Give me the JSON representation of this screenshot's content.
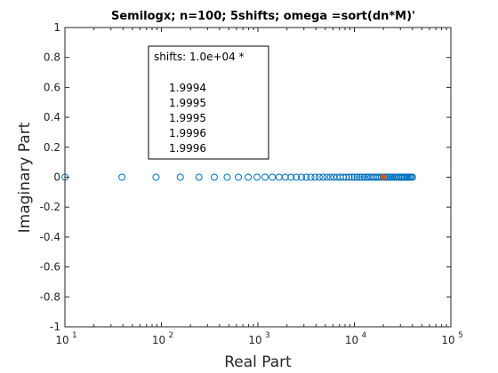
{
  "chart_data": {
    "type": "scatter",
    "title": "Semilogx; n=100; 5shifts; omega =sort(dn*M)'",
    "xlabel": "Real Part",
    "ylabel": "Imaginary Part",
    "xscale": "log",
    "xlim": [
      10,
      100000
    ],
    "ylim": [
      -1,
      1
    ],
    "xticks": [
      {
        "base": "10",
        "exp": "1"
      },
      {
        "base": "10",
        "exp": "2"
      },
      {
        "base": "10",
        "exp": "3"
      },
      {
        "base": "10",
        "exp": "4"
      },
      {
        "base": "10",
        "exp": "5"
      }
    ],
    "yticks": [
      "-1",
      "-0.8",
      "-0.6",
      "-0.4",
      "-0.2",
      "0",
      "0.2",
      "0.4",
      "0.6",
      "0.8",
      "1"
    ],
    "grid": false,
    "series": [
      {
        "marker": "circle-open",
        "color": "#0072BD",
        "x": [
          10,
          39,
          88,
          157,
          245,
          353,
          480,
          627,
          794,
          980,
          1186,
          1411,
          1656,
          1920,
          2204,
          2508,
          2831,
          3173,
          3535,
          3917,
          4318,
          4739,
          5180,
          5640,
          6120,
          6620,
          7139,
          7677,
          8235,
          8813,
          9410,
          10027,
          10664,
          11320,
          11996,
          12691,
          13406,
          14140,
          14894,
          15668,
          16461,
          17274,
          18106,
          18958,
          19829,
          20720,
          21631,
          22561,
          23511,
          24480,
          25469,
          26478,
          27506,
          28553,
          29620,
          30706,
          31812,
          32938,
          34083,
          35248,
          36432,
          37636,
          38860,
          40000
        ],
        "y": 0
      },
      {
        "marker": "filled-dot",
        "color": "#D95319",
        "x": [
          19994,
          19995,
          19995,
          19996,
          19996
        ],
        "y": 0
      }
    ],
    "annotation": {
      "header": "shifts: 1.0e+04 *",
      "values": [
        "1.9994",
        "1.9995",
        "1.9995",
        "1.9996",
        "1.9996"
      ]
    }
  }
}
